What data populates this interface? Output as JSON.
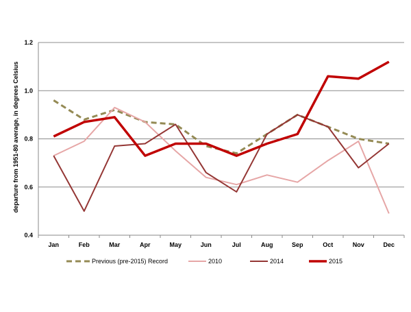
{
  "chart_data": {
    "type": "line",
    "title": "",
    "xlabel": "",
    "ylabel": "departure from 1951-80 average, in degrees Celsius",
    "categories": [
      "Jan",
      "Feb",
      "Mar",
      "Apr",
      "May",
      "Jun",
      "Jul",
      "Aug",
      "Sep",
      "Oct",
      "Nov",
      "Dec"
    ],
    "ylim": [
      0.4,
      1.2
    ],
    "yticks": [
      "0.4",
      "0.6",
      "0.8",
      "1.0",
      "1.2"
    ],
    "grid": "horizontal",
    "legend_position": "bottom",
    "series": [
      {
        "name": "Previous (pre-2015) Record",
        "color": "#948a54",
        "style": "dashed",
        "values": [
          0.96,
          0.88,
          0.92,
          0.87,
          0.86,
          0.77,
          0.74,
          0.82,
          0.9,
          0.85,
          0.8,
          0.78
        ]
      },
      {
        "name": "2010",
        "color": "#e6a6a6",
        "style": "solid",
        "values": [
          0.73,
          0.79,
          0.93,
          0.87,
          0.75,
          0.64,
          0.61,
          0.65,
          0.62,
          0.71,
          0.79,
          0.49
        ]
      },
      {
        "name": "2014",
        "color": "#943634",
        "style": "solid",
        "values": [
          0.73,
          0.5,
          0.77,
          0.78,
          0.86,
          0.66,
          0.58,
          0.82,
          0.9,
          0.85,
          0.68,
          0.78
        ]
      },
      {
        "name": "2015",
        "color": "#c00000",
        "style": "solid-thick",
        "values": [
          0.81,
          0.87,
          0.89,
          0.73,
          0.78,
          0.78,
          0.73,
          0.78,
          0.82,
          1.06,
          1.05,
          1.12
        ]
      }
    ]
  }
}
